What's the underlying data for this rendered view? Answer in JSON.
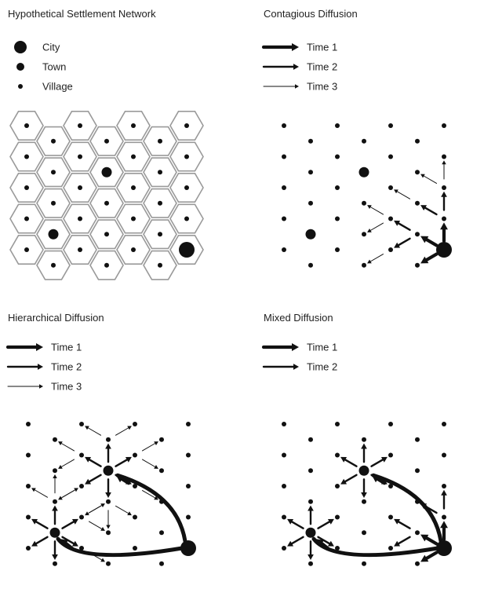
{
  "panels": [
    {
      "id": "network",
      "title": "Hypothetical Settlement Network",
      "legend_type": "settlement",
      "legend": [
        {
          "label": "City",
          "kind": "city"
        },
        {
          "label": "Town",
          "kind": "town"
        },
        {
          "label": "Village",
          "kind": "village"
        }
      ]
    },
    {
      "id": "contagious",
      "title": "Contagious Diffusion",
      "legend_type": "time",
      "legend": [
        {
          "label": "Time 1",
          "weight": "heavy"
        },
        {
          "label": "Time 2",
          "weight": "medium"
        },
        {
          "label": "Time 3",
          "weight": "light"
        }
      ]
    },
    {
      "id": "hierarchical",
      "title": "Hierarchical Diffusion",
      "legend_type": "time",
      "legend": [
        {
          "label": "Time 1",
          "weight": "heavy"
        },
        {
          "label": "Time 2",
          "weight": "medium"
        },
        {
          "label": "Time 3",
          "weight": "light"
        }
      ]
    },
    {
      "id": "mixed",
      "title": "Mixed Diffusion",
      "legend_type": "time",
      "legend": [
        {
          "label": "Time 1",
          "weight": "heavy"
        },
        {
          "label": "Time 2",
          "weight": "medium"
        }
      ]
    }
  ],
  "colors": {
    "ink": "#111111",
    "hex_border": "#9a9a9a",
    "background": "#ffffff"
  }
}
